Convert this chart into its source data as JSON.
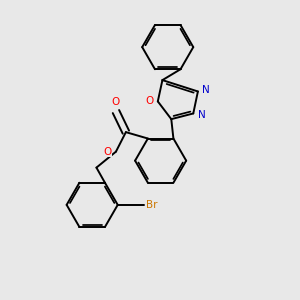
{
  "bg_color": "#e8e8e8",
  "bond_color": "#000000",
  "atom_colors": {
    "O": "#ff0000",
    "N": "#0000cc",
    "Br": "#cc7700",
    "C": "#000000"
  },
  "line_width": 1.4,
  "dbo": 0.055,
  "font_size": 7.5,
  "ring_r": 0.72
}
